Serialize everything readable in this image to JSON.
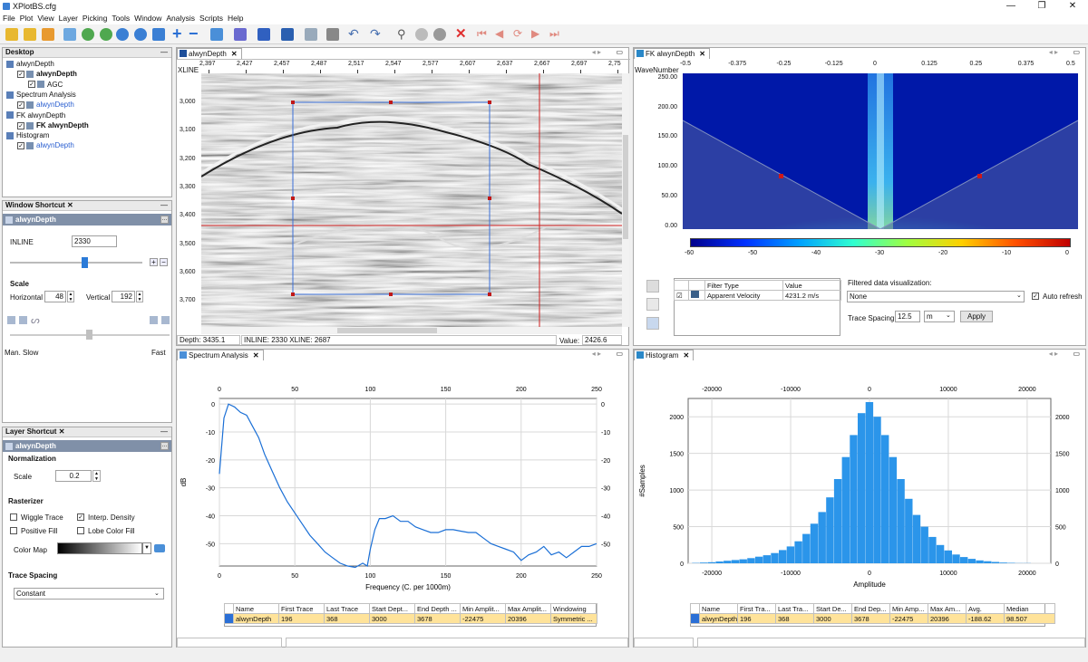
{
  "window": {
    "title": "XPlotBS.cfg",
    "controls": [
      "—",
      "❐",
      "✕"
    ]
  },
  "menu": [
    "File",
    "Plot",
    "View",
    "Layer",
    "Picking",
    "Tools",
    "Window",
    "Analysis",
    "Scripts",
    "Help"
  ],
  "desktop": {
    "title": "Desktop",
    "tree": [
      {
        "label": "alwynDepth",
        "level": 0,
        "bold": false
      },
      {
        "label": "alwynDepth",
        "level": 1,
        "bold": true
      },
      {
        "label": "AGC",
        "level": 2,
        "bold": false
      },
      {
        "label": "Spectrum Analysis",
        "level": 0,
        "bold": false
      },
      {
        "label": "alwynDepth",
        "level": 1,
        "bold": false,
        "link": true
      },
      {
        "label": "FK alwynDepth",
        "level": 0,
        "bold": false
      },
      {
        "label": "FK alwynDepth",
        "level": 1,
        "bold": true
      },
      {
        "label": "Histogram",
        "level": 0,
        "bold": false
      },
      {
        "label": "alwynDepth",
        "level": 1,
        "bold": false,
        "link": true
      }
    ]
  },
  "window_shortcut": {
    "title": "Window Shortcut",
    "selected": "alwynDepth",
    "inline_label": "INLINE",
    "inline_value": "2330",
    "scale_label": "Scale",
    "horizontal_label": "Horizontal",
    "horizontal_value": "48",
    "vertical_label": "Vertical",
    "vertical_value": "192",
    "speed_left": "Man.  Slow",
    "speed_right": "Fast"
  },
  "layer_shortcut": {
    "title": "Layer Shortcut",
    "selected": "alwynDepth",
    "normalization_label": "Normalization",
    "scale_label": "Scale",
    "scale_value": "0.2",
    "rasterizer_label": "Rasterizer",
    "wiggle_trace": "Wiggle Trace",
    "interp_density": "Interp. Density",
    "positive_fill": "Positive Fill",
    "lobe_color_fill": "Lobe Color Fill",
    "color_map_label": "Color Map",
    "trace_spacing_label": "Trace Spacing",
    "trace_spacing_value": "Constant"
  },
  "seismic": {
    "tab": "alwynDepth",
    "xline_label": "XLINE",
    "x_ticks": [
      "2,397",
      "2,427",
      "2,457",
      "2,487",
      "2,517",
      "2,547",
      "2,577",
      "2,607",
      "2,637",
      "2,667",
      "2,697",
      "2,75"
    ],
    "y_ticks": [
      "3,000",
      "3,100",
      "3,200",
      "3,300",
      "3,400",
      "3,500",
      "3,600",
      "3,700"
    ],
    "status_depth": "Depth: 3435.1",
    "status_location": "INLINE: 2330 XLINE: 2687",
    "status_value_label": "Value:",
    "status_value": "2426.6"
  },
  "fk": {
    "tab": "FK alwynDepth",
    "y_axis_label": "WaveNumber",
    "x_ticks": [
      "-0.5",
      "-0.375",
      "-0.25",
      "-0.125",
      "0",
      "0.125",
      "0.25",
      "0.375",
      "0.5"
    ],
    "y_ticks": [
      "250.00",
      "200.00",
      "150.00",
      "100.00",
      "50.00",
      "0.00"
    ],
    "colorbar_ticks": [
      "-60",
      "-50",
      "-40",
      "-30",
      "-20",
      "-10",
      "0"
    ],
    "filter_table": {
      "headers": [
        "Filter Type",
        "Value"
      ],
      "rows": [
        [
          "Apparent Velocity",
          "4231.2 m/s"
        ]
      ]
    },
    "filtered_vis_label": "Filtered data visualization:",
    "filtered_vis_value": "None",
    "auto_refresh": "Auto refresh",
    "trace_spacing_label": "Trace Spacing",
    "trace_spacing_value": "12.5",
    "trace_spacing_unit": "m",
    "apply_button": "Apply"
  },
  "spectrum": {
    "tab": "Spectrum Analysis",
    "y_label": "dB",
    "x_label": "Frequency (C. per 1000m)",
    "table": {
      "headers": [
        "Name",
        "First Trace",
        "Last Trace",
        "Start Dept...",
        "End Depth ...",
        "Min Amplit...",
        "Max Amplit...",
        "Windowing"
      ],
      "rows": [
        [
          "alwynDepth",
          "196",
          "368",
          "3000",
          "3678",
          "-22475",
          "20396",
          "Symmetric ..."
        ]
      ]
    }
  },
  "histogram": {
    "tab": "Histogram",
    "y_label": "#Samples",
    "x_label": "Amplitude",
    "table": {
      "headers": [
        "Name",
        "First Tra...",
        "Last Tra...",
        "Start De...",
        "End Dep...",
        "Min Amp...",
        "Max Am...",
        "Avg.",
        "Median"
      ],
      "rows": [
        [
          "alwynDepth",
          "196",
          "368",
          "3000",
          "3678",
          "-22475",
          "20396",
          "-188.62",
          "98.507"
        ]
      ]
    }
  },
  "chart_data": [
    {
      "type": "line",
      "xlabel": "Frequency (C. per 1000m)",
      "ylabel": "dB",
      "xlim": [
        0,
        250
      ],
      "ylim": [
        -58,
        2
      ],
      "x_ticks": [
        0,
        50,
        100,
        150,
        200,
        250
      ],
      "y_ticks": [
        0,
        -10,
        -20,
        -30,
        -40,
        -50
      ],
      "grid": true,
      "color": "#1a6fd6",
      "x": [
        0,
        3,
        6,
        10,
        14,
        18,
        22,
        26,
        30,
        35,
        40,
        45,
        50,
        55,
        60,
        65,
        70,
        75,
        80,
        85,
        90,
        95,
        98,
        100,
        103,
        106,
        110,
        115,
        120,
        125,
        130,
        135,
        140,
        145,
        150,
        155,
        160,
        165,
        170,
        175,
        180,
        185,
        190,
        195,
        200,
        205,
        210,
        215,
        220,
        225,
        230,
        235,
        240,
        245,
        250
      ],
      "values": [
        -25,
        -5,
        0,
        -1,
        -3,
        -4,
        -8,
        -12,
        -18,
        -24,
        -30,
        -35,
        -39,
        -43,
        -47,
        -50,
        -53,
        -55,
        -57,
        -58,
        -58.5,
        -57,
        -58,
        -52,
        -45,
        -41,
        -41,
        -40,
        -42,
        -42,
        -44,
        -45,
        -46,
        -46,
        -45,
        -45,
        -45.5,
        -46,
        -46,
        -48,
        -50,
        -51,
        -52,
        -53,
        -56,
        -54,
        -53,
        -51,
        -54,
        -53,
        -55,
        -53,
        -51,
        -51,
        -50
      ]
    },
    {
      "type": "bar",
      "xlabel": "Amplitude",
      "ylabel": "#Samples",
      "xlim": [
        -23000,
        23000
      ],
      "ylim": [
        0,
        2250
      ],
      "x_ticks": [
        -20000,
        -10000,
        0,
        10000,
        20000
      ],
      "y_ticks": [
        0,
        500,
        1000,
        1500,
        2000
      ],
      "color": "#2b95ea",
      "bin_centers": [
        -22000,
        -21000,
        -20000,
        -19000,
        -18000,
        -17000,
        -16000,
        -15000,
        -14000,
        -13000,
        -12000,
        -11000,
        -10000,
        -9000,
        -8000,
        -7000,
        -6000,
        -5000,
        -4000,
        -3000,
        -2000,
        -1000,
        0,
        1000,
        2000,
        3000,
        4000,
        5000,
        6000,
        7000,
        8000,
        9000,
        10000,
        11000,
        12000,
        13000,
        14000,
        15000,
        16000,
        17000,
        18000,
        19000,
        20000
      ],
      "values": [
        5,
        10,
        15,
        25,
        35,
        45,
        55,
        70,
        90,
        110,
        140,
        180,
        230,
        300,
        400,
        540,
        700,
        900,
        1150,
        1450,
        1750,
        2050,
        2200,
        2000,
        1750,
        1450,
        1150,
        880,
        660,
        500,
        360,
        250,
        175,
        120,
        85,
        60,
        40,
        28,
        18,
        10,
        6,
        3,
        2
      ]
    }
  ]
}
